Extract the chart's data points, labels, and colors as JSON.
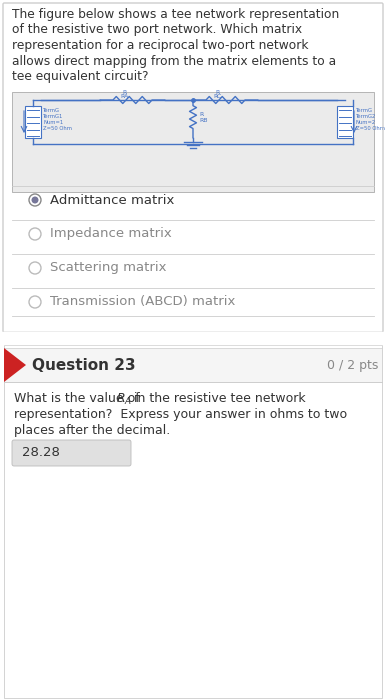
{
  "question_lines": [
    "The figure below shows a tee network representation",
    "of the resistive two port network. Which matrix",
    "representation for a reciprocal two-port network",
    "allows direct mapping from the matrix elements to a",
    "tee equivalent circuit?"
  ],
  "options": [
    {
      "text": "Admittance matrix",
      "selected": true
    },
    {
      "text": "Impedance matrix",
      "selected": false
    },
    {
      "text": "Scattering matrix",
      "selected": false
    },
    {
      "text": "Transmission (ABCD) matrix",
      "selected": false
    }
  ],
  "q23_header": "Question 23",
  "q23_pts": "0 / 2 pts",
  "q23_body_lines": [
    "What is the value of $R_A$ in the resistive tee network",
    "representation?  Express your answer in ohms to two",
    "places after the decimal."
  ],
  "answer": "28.28",
  "bg_white": "#ffffff",
  "bg_light": "#f5f5f5",
  "bg_circuit": "#ebebeb",
  "circuit_color": "#4472c4",
  "text_dark": "#333333",
  "text_gray": "#888888",
  "divider": "#cccccc",
  "arrow_red": "#cc2222",
  "radio_fill": "#666688",
  "radio_unfill": "#aaaaaa",
  "ans_box_bg": "#e0e0e0"
}
